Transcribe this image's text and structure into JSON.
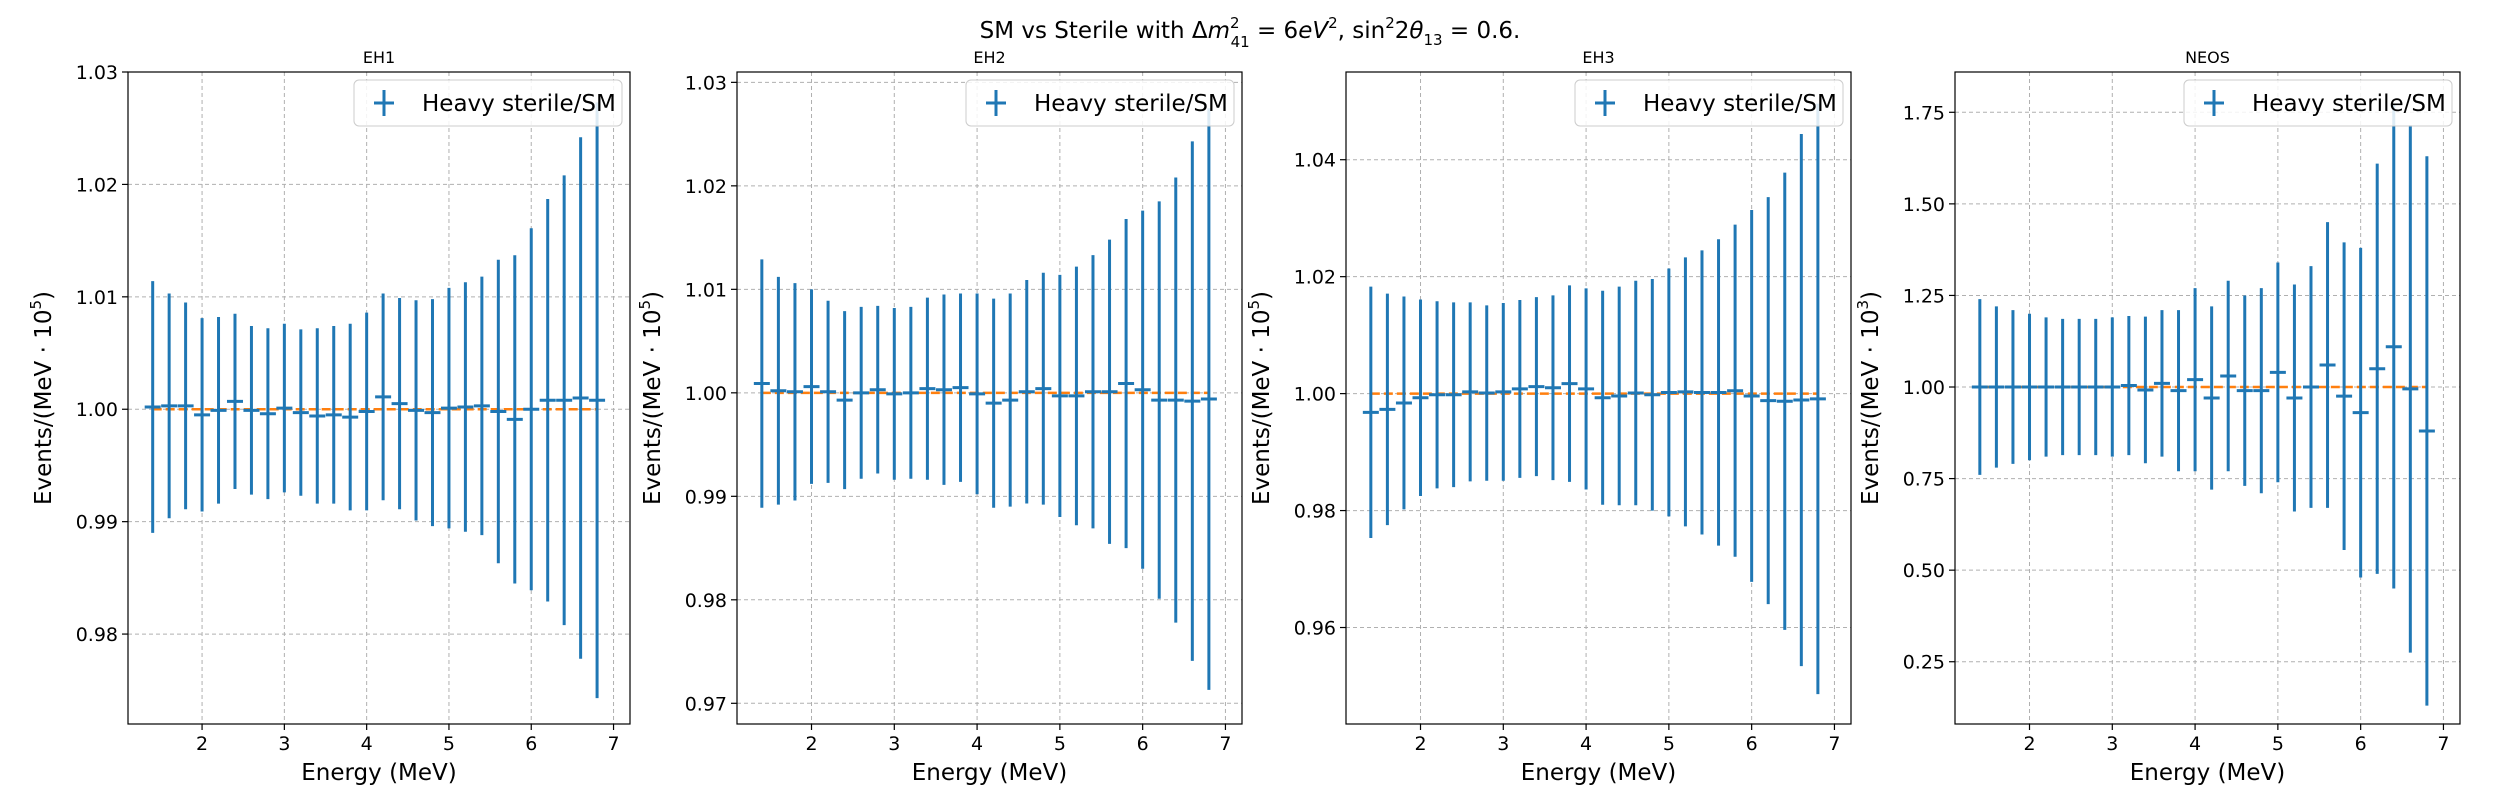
{
  "suptitle": {
    "prefix": "SM vs Sterile with ",
    "delta": "Δ",
    "m": "m",
    "m_sup": "2",
    "m_sub": "41",
    "eq1": " = 6",
    "ev": "eV",
    "ev_sup": "2",
    "sep": ", ",
    "sin": "sin",
    "sin_sup": "2",
    "two": "2",
    "theta": "θ",
    "theta_sub": "13",
    "eq2": " = 0.6."
  },
  "colors": {
    "series": "#1f77b4",
    "reference": "#ff7f0e",
    "grid": "#b0b0b0"
  },
  "chart_data": [
    {
      "type": "scatter",
      "title": "EH1",
      "xlabel": "Energy (MeV)",
      "ylabel": {
        "text": "Events/(MeV · 10",
        "exp": "5",
        "close": ")"
      },
      "xlim": [
        1.1,
        7.2
      ],
      "ylim": [
        0.972,
        1.03
      ],
      "xticks": [
        2,
        3,
        4,
        5,
        6,
        7
      ],
      "xtick_labels": [
        "2",
        "3",
        "4",
        "5",
        "6",
        "7"
      ],
      "yticks": [
        0.98,
        0.99,
        1.0,
        1.01,
        1.02,
        1.03
      ],
      "ytick_labels": [
        "0.98",
        "0.99",
        "1.00",
        "1.01",
        "1.02",
        "1.03"
      ],
      "grid": true,
      "legend_position": "top-right",
      "reference_line": 1.0,
      "series": [
        {
          "name": "Heavy sterile/SM",
          "x": [
            1.4,
            1.6,
            1.8,
            2.0,
            2.2,
            2.4,
            2.6,
            2.8,
            3.0,
            3.2,
            3.4,
            3.6,
            3.8,
            4.0,
            4.2,
            4.4,
            4.6,
            4.8,
            5.0,
            5.2,
            5.4,
            5.6,
            5.8,
            6.0,
            6.2,
            6.4,
            6.6,
            6.8
          ],
          "y": [
            1.0002,
            1.0003,
            1.0003,
            0.9995,
            0.9999,
            1.0007,
            0.9999,
            0.9996,
            1.0001,
            0.9997,
            0.9994,
            0.9995,
            0.9993,
            0.9998,
            1.0011,
            1.0005,
            0.9999,
            0.9997,
            1.0001,
            1.0002,
            1.0003,
            0.9998,
            0.9991,
            1.0,
            1.0008,
            1.0008,
            1.001,
            1.0008
          ],
          "yerr": [
            0.0112,
            0.01,
            0.0092,
            0.0086,
            0.0083,
            0.0078,
            0.0075,
            0.0076,
            0.0075,
            0.0074,
            0.0078,
            0.0079,
            0.0083,
            0.0088,
            0.0092,
            0.0094,
            0.0098,
            0.0101,
            0.0107,
            0.0111,
            0.0115,
            0.0135,
            0.0146,
            0.0161,
            0.0179,
            0.02,
            0.0232,
            0.0265
          ]
        }
      ]
    },
    {
      "type": "scatter",
      "title": "EH2",
      "xlabel": "Energy (MeV)",
      "ylabel": {
        "text": "Events/(MeV · 10",
        "exp": "5",
        "close": ")"
      },
      "xlim": [
        1.1,
        7.2
      ],
      "ylim": [
        0.968,
        1.031
      ],
      "xticks": [
        2,
        3,
        4,
        5,
        6,
        7
      ],
      "xtick_labels": [
        "2",
        "3",
        "4",
        "5",
        "6",
        "7"
      ],
      "yticks": [
        0.97,
        0.98,
        0.99,
        1.0,
        1.01,
        1.02,
        1.03
      ],
      "ytick_labels": [
        "0.97",
        "0.98",
        "0.99",
        "1.00",
        "1.01",
        "1.02",
        "1.03"
      ],
      "grid": true,
      "legend_position": "top-right",
      "reference_line": 1.0,
      "series": [
        {
          "name": "Heavy sterile/SM",
          "x": [
            1.4,
            1.6,
            1.8,
            2.0,
            2.2,
            2.4,
            2.6,
            2.8,
            3.0,
            3.2,
            3.4,
            3.6,
            3.8,
            4.0,
            4.2,
            4.4,
            4.6,
            4.8,
            5.0,
            5.2,
            5.4,
            5.6,
            5.8,
            6.0,
            6.2,
            6.4,
            6.6,
            6.8
          ],
          "y": [
            1.0009,
            1.0002,
            1.0001,
            1.0006,
            1.0001,
            0.9993,
            1.0,
            1.0003,
            0.9999,
            1.0,
            1.0004,
            1.0003,
            1.0005,
            0.9999,
            0.999,
            0.9993,
            1.0001,
            1.0004,
            0.9997,
            0.9997,
            1.0001,
            1.0001,
            1.0009,
            1.0003,
            0.9993,
            0.9993,
            0.9992,
            0.9994
          ],
          "yerr": [
            0.012,
            0.011,
            0.0105,
            0.0094,
            0.0088,
            0.0086,
            0.0083,
            0.0081,
            0.0083,
            0.0083,
            0.0088,
            0.0092,
            0.0091,
            0.0097,
            0.0101,
            0.0103,
            0.0108,
            0.0112,
            0.0117,
            0.0125,
            0.0132,
            0.0147,
            0.0159,
            0.0173,
            0.0192,
            0.0215,
            0.0251,
            0.0281
          ]
        }
      ]
    },
    {
      "type": "scatter",
      "title": "EH3",
      "xlabel": "Energy (MeV)",
      "ylabel": {
        "text": "Events/(MeV · 10",
        "exp": "5",
        "close": ")"
      },
      "xlim": [
        1.1,
        7.2
      ],
      "ylim": [
        0.9435,
        1.055
      ],
      "xticks": [
        2,
        3,
        4,
        5,
        6,
        7
      ],
      "xtick_labels": [
        "2",
        "3",
        "4",
        "5",
        "6",
        "7"
      ],
      "yticks": [
        0.96,
        0.98,
        1.0,
        1.02,
        1.04
      ],
      "ytick_labels": [
        "0.96",
        "0.98",
        "1.00",
        "1.02",
        "1.04"
      ],
      "grid": true,
      "legend_position": "top-right",
      "reference_line": 1.0,
      "series": [
        {
          "name": "Heavy sterile/SM",
          "x": [
            1.4,
            1.6,
            1.8,
            2.0,
            2.2,
            2.4,
            2.6,
            2.8,
            3.0,
            3.2,
            3.4,
            3.6,
            3.8,
            4.0,
            4.2,
            4.4,
            4.6,
            4.8,
            5.0,
            5.2,
            5.4,
            5.6,
            5.8,
            6.0,
            6.2,
            6.4,
            6.6,
            6.8
          ],
          "y": [
            0.9968,
            0.9973,
            0.9984,
            0.9993,
            0.9998,
            0.9998,
            1.0003,
            1.0001,
            1.0003,
            1.0008,
            1.0012,
            1.001,
            1.0017,
            1.0008,
            0.9993,
            0.9996,
            1.0001,
            0.9998,
            1.0002,
            1.0003,
            1.0002,
            1.0002,
            1.0005,
            0.9996,
            0.9988,
            0.9987,
            0.9989,
            0.9991
          ],
          "yerr": [
            0.0215,
            0.0198,
            0.0182,
            0.0168,
            0.016,
            0.0158,
            0.0153,
            0.015,
            0.0152,
            0.0152,
            0.0153,
            0.0158,
            0.0168,
            0.0172,
            0.0183,
            0.0187,
            0.0192,
            0.0198,
            0.0212,
            0.023,
            0.0243,
            0.0262,
            0.0284,
            0.0318,
            0.0348,
            0.0391,
            0.0455,
            0.0505
          ]
        }
      ]
    },
    {
      "type": "scatter",
      "title": "NEOS",
      "xlabel": "Energy (MeV)",
      "ylabel": {
        "text": "Events/(MeV · 10",
        "exp": "3",
        "close": ")"
      },
      "xlim": [
        1.1,
        7.2
      ],
      "ylim": [
        0.08,
        1.86
      ],
      "xticks": [
        2,
        3,
        4,
        5,
        6,
        7
      ],
      "xtick_labels": [
        "2",
        "3",
        "4",
        "5",
        "6",
        "7"
      ],
      "yticks": [
        0.25,
        0.5,
        0.75,
        1.0,
        1.25,
        1.5,
        1.75
      ],
      "ytick_labels": [
        "0.25",
        "0.50",
        "0.75",
        "1.00",
        "1.25",
        "1.50",
        "1.75"
      ],
      "grid": true,
      "legend_position": "top-right",
      "reference_line": 1.0,
      "series": [
        {
          "name": "Heavy sterile/SM",
          "x": [
            1.4,
            1.6,
            1.8,
            2.0,
            2.2,
            2.4,
            2.6,
            2.8,
            3.0,
            3.2,
            3.4,
            3.6,
            3.8,
            4.0,
            4.2,
            4.4,
            4.6,
            4.8,
            5.0,
            5.2,
            5.4,
            5.6,
            5.8,
            6.0,
            6.2,
            6.4,
            6.6,
            6.8
          ],
          "y": [
            1.0,
            1.0,
            1.0,
            1.0,
            1.0,
            1.0,
            1.0,
            1.0,
            1.0,
            1.004,
            0.992,
            1.01,
            0.99,
            1.02,
            0.97,
            1.03,
            0.99,
            0.99,
            1.04,
            0.97,
            1.0,
            1.06,
            0.975,
            0.93,
            1.05,
            1.11,
            0.995,
            0.88
          ],
          "yerr": [
            0.24,
            0.22,
            0.21,
            0.2,
            0.19,
            0.186,
            0.186,
            0.186,
            0.19,
            0.19,
            0.2,
            0.2,
            0.22,
            0.25,
            0.25,
            0.26,
            0.26,
            0.28,
            0.3,
            0.31,
            0.33,
            0.39,
            0.42,
            0.45,
            0.56,
            0.66,
            0.72,
            0.75
          ]
        }
      ]
    }
  ]
}
